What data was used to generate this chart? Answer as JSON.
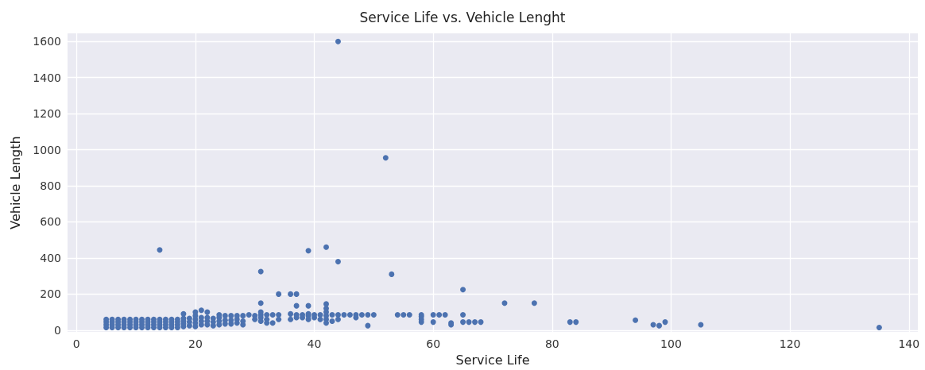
{
  "chart_data": {
    "type": "scatter",
    "title": "Service Life vs. Vehicle Lenght",
    "xlabel": "Service Life",
    "ylabel": "Vehicle Length",
    "x": [
      5,
      5,
      5,
      5,
      6,
      6,
      6,
      6,
      7,
      7,
      7,
      7,
      8,
      8,
      8,
      8,
      9,
      9,
      9,
      9,
      10,
      10,
      10,
      10,
      11,
      11,
      11,
      11,
      12,
      12,
      12,
      12,
      13,
      13,
      13,
      13,
      14,
      14,
      14,
      14,
      15,
      15,
      15,
      15,
      16,
      16,
      16,
      16,
      17,
      17,
      17,
      17,
      18,
      18,
      18,
      18,
      18,
      19,
      19,
      19,
      20,
      20,
      20,
      20,
      20,
      21,
      21,
      21,
      21,
      22,
      22,
      22,
      22,
      23,
      23,
      23,
      24,
      24,
      24,
      24,
      25,
      25,
      25,
      26,
      26,
      26,
      27,
      27,
      27,
      28,
      28,
      28,
      29,
      30,
      30,
      31,
      31,
      31,
      31,
      32,
      32,
      32,
      33,
      33,
      34,
      34,
      36,
      36,
      37,
      37,
      38,
      38,
      39,
      39,
      39,
      40,
      40,
      41,
      41,
      42,
      42,
      42,
      42,
      43,
      43,
      44,
      44,
      45,
      46,
      47,
      47,
      48,
      49,
      49,
      50,
      54,
      55,
      56,
      58,
      58,
      58,
      58,
      60,
      60,
      61,
      62,
      63,
      63,
      65,
      65,
      66,
      67,
      68,
      14,
      31,
      34,
      36,
      37,
      39,
      42,
      44,
      44,
      52,
      53,
      65,
      72,
      77,
      31,
      37,
      39,
      42,
      42,
      83,
      84,
      94,
      97,
      98,
      99,
      105,
      135
    ],
    "values": [
      15,
      30,
      45,
      60,
      15,
      30,
      45,
      60,
      15,
      30,
      45,
      60,
      15,
      30,
      45,
      60,
      15,
      30,
      45,
      60,
      15,
      30,
      45,
      60,
      15,
      30,
      45,
      60,
      15,
      30,
      45,
      60,
      15,
      30,
      45,
      60,
      15,
      30,
      45,
      60,
      15,
      30,
      45,
      60,
      15,
      30,
      45,
      60,
      15,
      30,
      45,
      60,
      20,
      35,
      50,
      65,
      90,
      25,
      45,
      65,
      20,
      40,
      60,
      80,
      100,
      30,
      50,
      70,
      110,
      30,
      50,
      70,
      100,
      25,
      45,
      65,
      30,
      50,
      70,
      85,
      35,
      55,
      80,
      35,
      55,
      80,
      40,
      60,
      80,
      30,
      50,
      80,
      85,
      60,
      80,
      50,
      70,
      85,
      100,
      40,
      60,
      85,
      40,
      85,
      60,
      85,
      60,
      90,
      70,
      85,
      70,
      85,
      60,
      80,
      90,
      70,
      85,
      60,
      85,
      40,
      60,
      80,
      100,
      50,
      85,
      60,
      85,
      85,
      85,
      70,
      85,
      85,
      25,
      85,
      85,
      85,
      85,
      85,
      45,
      60,
      75,
      85,
      45,
      85,
      85,
      85,
      30,
      40,
      45,
      85,
      45,
      45,
      45,
      445,
      325,
      200,
      200,
      200,
      440,
      460,
      380,
      1600,
      955,
      310,
      225,
      150,
      150,
      150,
      135,
      135,
      145,
      120,
      45,
      45,
      55,
      30,
      25,
      45,
      30,
      15
    ],
    "color": "#4c72b0",
    "marker": "circle",
    "grid": true,
    "xlim": [
      -1.5,
      141.5
    ],
    "xticks": [
      0,
      20,
      40,
      60,
      80,
      100,
      120,
      140
    ],
    "ylim": [
      -10,
      1645
    ],
    "yticks": [
      0,
      200,
      400,
      600,
      800,
      1000,
      1200,
      1400,
      1600
    ]
  }
}
